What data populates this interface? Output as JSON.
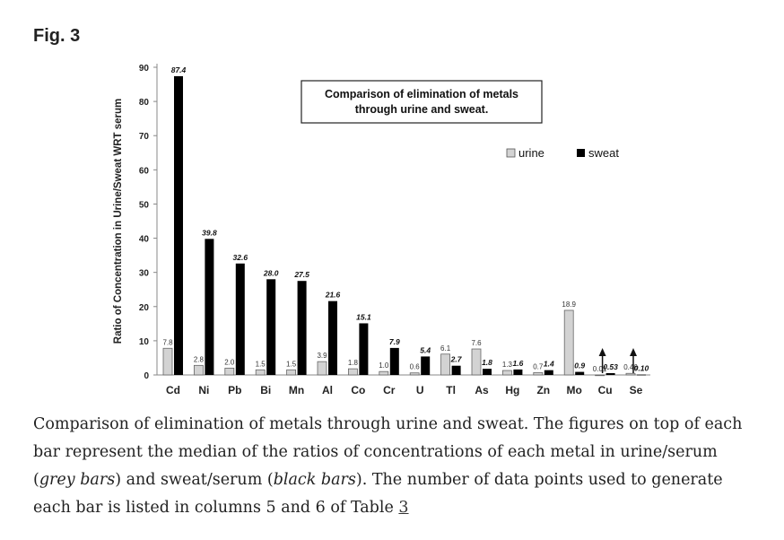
{
  "figure": {
    "label": "Fig. 3"
  },
  "chart_data": {
    "type": "bar",
    "title": "Comparison of elimination of metals through urine and sweat.",
    "ylabel": "Ratio of Concentration in Urine/Sweat WRT serum",
    "xlabel": "",
    "ylim": [
      0,
      90
    ],
    "yticks": [
      0,
      10,
      20,
      30,
      40,
      50,
      60,
      70,
      80,
      90
    ],
    "legend_position": "top-right",
    "categories": [
      "Cd",
      "Ni",
      "Pb",
      "Bi",
      "Mn",
      "Al",
      "Co",
      "Cr",
      "U",
      "Tl",
      "As",
      "Hg",
      "Zn",
      "Mo",
      "Cu",
      "Se"
    ],
    "series": [
      {
        "name": "urine",
        "color": "#d3d3d3",
        "values": [
          7.8,
          2.8,
          2.0,
          1.5,
          1.5,
          3.9,
          1.8,
          1.0,
          0.6,
          6.1,
          7.6,
          1.3,
          0.7,
          18.9,
          0.01,
          0.46
        ],
        "labels": [
          "7.8",
          "2.8",
          "2.0",
          "1.5",
          "1.5",
          "3.9",
          "1.8",
          "1.0",
          "0.6",
          "6.1",
          "7.6",
          "1.3",
          "0.7",
          "18.9",
          "0.01",
          "0.46"
        ]
      },
      {
        "name": "sweat",
        "color": "#000000",
        "values": [
          87.4,
          39.8,
          32.6,
          28.0,
          27.5,
          21.6,
          15.1,
          7.9,
          5.4,
          2.7,
          1.8,
          1.6,
          1.4,
          0.9,
          0.53,
          0.1
        ],
        "labels": [
          "87.4",
          "39.8",
          "32.6",
          "28.0",
          "27.5",
          "21.6",
          "15.1",
          "7.9",
          "5.4",
          "2.7",
          "1.8",
          "1.6",
          "1.4",
          "0.9",
          "0.53",
          "0.10"
        ]
      }
    ]
  },
  "caption": {
    "part1": "Comparison of elimination of metals through urine and sweat. The figures on top of each bar represent the median of the ratios of concentrations of each metal in urine/serum (",
    "grey": "grey bars",
    "part2": ") and sweat/serum (",
    "black": "black bars",
    "part3": "). The number of data points used to generate each bar is listed in columns 5 and 6 of Table ",
    "link": "3"
  }
}
